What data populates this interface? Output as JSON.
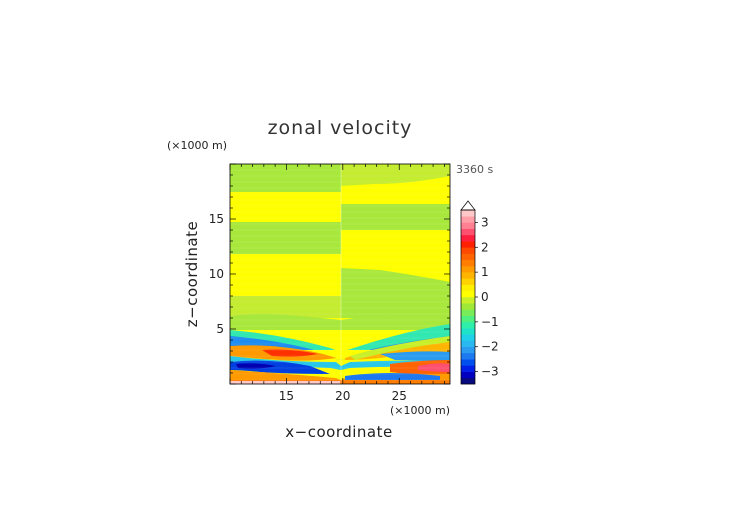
{
  "chart_data": {
    "type": "heatmap",
    "title": "zonal velocity",
    "xlabel": "x−coordinate",
    "ylabel": "z−coordinate",
    "x_unit": "(×1000 m)",
    "y_unit": "(×1000 m)",
    "time_label": "3360 s",
    "xlim": [
      10,
      29.5
    ],
    "ylim": [
      0,
      20
    ],
    "xticks": [
      {
        "value": 15,
        "label": "15"
      },
      {
        "value": 20,
        "label": "20"
      },
      {
        "value": 25,
        "label": "25"
      }
    ],
    "yticks": [
      {
        "value": 5,
        "label": "5"
      },
      {
        "value": 10,
        "label": "10"
      },
      {
        "value": 15,
        "label": "15"
      }
    ],
    "colorbar": {
      "levels": [
        -3.5,
        -3.25,
        -3,
        -2.75,
        -2.5,
        -2.25,
        -2,
        -1.75,
        -1.5,
        -1.25,
        -1,
        -0.75,
        -0.5,
        -0.25,
        0,
        0.25,
        0.5,
        0.75,
        1,
        1.25,
        1.5,
        1.75,
        2,
        2.25,
        2.5,
        2.75,
        3,
        3.25,
        3.5
      ],
      "colors": [
        "#0a0a80",
        "#0000c0",
        "#0020e8",
        "#0050f0",
        "#1e78f0",
        "#2b9bf0",
        "#29b8f0",
        "#1fd0e8",
        "#1ee3c8",
        "#2ef0a8",
        "#50f080",
        "#78ec58",
        "#a0e838",
        "#c8ef28",
        "#ffff00",
        "#fff000",
        "#ffd200",
        "#ffb400",
        "#ff9a00",
        "#ff7d00",
        "#ff6400",
        "#ff4800",
        "#ff2000",
        "#ff2040",
        "#ff5070",
        "#ff8090",
        "#ffa0a8",
        "#ffc8c8"
      ],
      "ticks": [
        {
          "value": 3,
          "label": "3"
        },
        {
          "value": 2,
          "label": "2"
        },
        {
          "value": 1,
          "label": "1"
        },
        {
          "value": 0,
          "label": "0"
        },
        {
          "value": -1,
          "label": "−1"
        },
        {
          "value": -2,
          "label": "−2"
        },
        {
          "value": -3,
          "label": "−3"
        }
      ]
    }
  }
}
